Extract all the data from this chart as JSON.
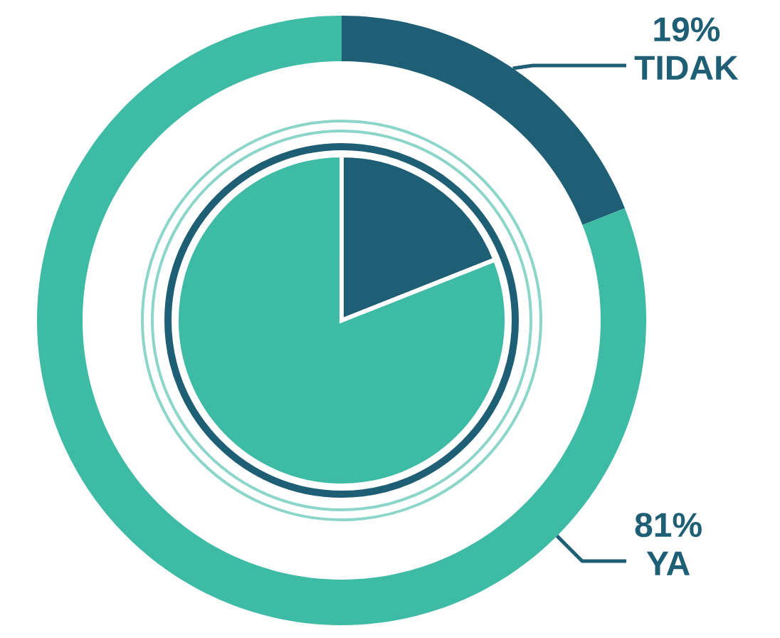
{
  "chart_data": {
    "type": "donut",
    "categories": [
      "TIDAK",
      "YA"
    ],
    "values": [
      19,
      81
    ],
    "colors": [
      "#1f5f75",
      "#3dbba4"
    ],
    "value_labels": [
      "19%",
      "81%"
    ]
  }
}
